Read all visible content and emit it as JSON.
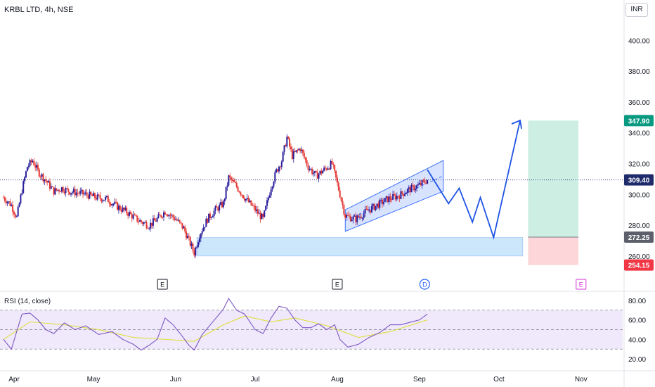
{
  "header": {
    "title": "KRBL LTD, 4h, NSE",
    "currency_button": "INR"
  },
  "rsi_panel": {
    "title": "RSI (14, close)"
  },
  "colors": {
    "bull": "#2a1f9c",
    "bear": "#e53935",
    "channel": "#2962ff",
    "projection": "#1e53e5",
    "support_zone": "#bbdefb",
    "target_zone": "#cceee3",
    "stop_zone": "#fdd6d9",
    "rsi_line": "#7e57c2",
    "rsi_ma": "#e1df4a",
    "rsi_band": "#efe9fb"
  },
  "event_markers": [
    {
      "label": "E",
      "type": "earnings",
      "date": "May 27"
    },
    {
      "label": "E",
      "type": "earnings",
      "date": "Aug 1"
    },
    {
      "label": "D",
      "type": "dividend",
      "date": "Sep 3"
    },
    {
      "label": "E",
      "type": "earnings",
      "date": "Nov 1"
    }
  ],
  "price_tags": [
    {
      "label": "347.90",
      "value": 347.9,
      "color": "#089981"
    },
    {
      "label": "309.40",
      "value": 309.4,
      "color": "#1f2a6b"
    },
    {
      "label": "272.25",
      "value": 272.25,
      "color": "#5d606b"
    },
    {
      "label": "254.15",
      "value": 254.15,
      "color": "#f23645"
    }
  ],
  "chart_data": [
    {
      "type": "candlestick",
      "title": "KRBL LTD, 4h, NSE",
      "xlabel": "",
      "ylabel": "INR",
      "x_ticks": [
        "Apr",
        "May",
        "Jun",
        "Jul",
        "Aug",
        "Sep",
        "Oct",
        "Nov"
      ],
      "y_ticks": [
        260,
        280,
        300,
        320,
        340,
        360,
        380,
        400
      ],
      "ylim": [
        254,
        408
      ],
      "last_price": 309.4,
      "closes": [
        {
          "date": "Mar 28",
          "value": 298
        },
        {
          "date": "Mar 31",
          "value": 293
        },
        {
          "date": "Apr 2",
          "value": 285
        },
        {
          "date": "Apr 4",
          "value": 303
        },
        {
          "date": "Apr 6",
          "value": 318
        },
        {
          "date": "Apr 8",
          "value": 322
        },
        {
          "date": "Apr 10",
          "value": 315
        },
        {
          "date": "Apr 13",
          "value": 309
        },
        {
          "date": "Apr 16",
          "value": 302
        },
        {
          "date": "Apr 19",
          "value": 304
        },
        {
          "date": "Apr 22",
          "value": 302
        },
        {
          "date": "Apr 25",
          "value": 301
        },
        {
          "date": "Apr 28",
          "value": 300
        },
        {
          "date": "May 2",
          "value": 298
        },
        {
          "date": "May 6",
          "value": 297
        },
        {
          "date": "May 10",
          "value": 292
        },
        {
          "date": "May 14",
          "value": 288
        },
        {
          "date": "May 18",
          "value": 283
        },
        {
          "date": "May 22",
          "value": 280
        },
        {
          "date": "May 25",
          "value": 284
        },
        {
          "date": "May 28",
          "value": 289
        },
        {
          "date": "Jun 1",
          "value": 284
        },
        {
          "date": "Jun 4",
          "value": 278
        },
        {
          "date": "Jun 6",
          "value": 270
        },
        {
          "date": "Jun 8",
          "value": 262
        },
        {
          "date": "Jun 10",
          "value": 274
        },
        {
          "date": "Jun 13",
          "value": 284
        },
        {
          "date": "Jun 16",
          "value": 290
        },
        {
          "date": "Jun 19",
          "value": 294
        },
        {
          "date": "Jun 21",
          "value": 311
        },
        {
          "date": "Jun 24",
          "value": 305
        },
        {
          "date": "Jun 27",
          "value": 298
        },
        {
          "date": "Jul 1",
          "value": 290
        },
        {
          "date": "Jul 4",
          "value": 284
        },
        {
          "date": "Jul 7",
          "value": 305
        },
        {
          "date": "Jul 9",
          "value": 315
        },
        {
          "date": "Jul 11",
          "value": 322
        },
        {
          "date": "Jul 13",
          "value": 337
        },
        {
          "date": "Jul 15",
          "value": 325
        },
        {
          "date": "Jul 18",
          "value": 330
        },
        {
          "date": "Jul 21",
          "value": 318
        },
        {
          "date": "Jul 24",
          "value": 312
        },
        {
          "date": "Jul 27",
          "value": 316
        },
        {
          "date": "Jul 30",
          "value": 320
        },
        {
          "date": "Aug 2",
          "value": 300
        },
        {
          "date": "Aug 4",
          "value": 286
        },
        {
          "date": "Aug 8",
          "value": 284
        },
        {
          "date": "Aug 12",
          "value": 289
        },
        {
          "date": "Aug 16",
          "value": 293
        },
        {
          "date": "Aug 20",
          "value": 297
        },
        {
          "date": "Aug 24",
          "value": 299
        },
        {
          "date": "Aug 28",
          "value": 303
        },
        {
          "date": "Sep 1",
          "value": 306
        },
        {
          "date": "Sep 4",
          "value": 309.4
        }
      ],
      "annotations": {
        "support_zone": {
          "from": "Jun 9",
          "to": "Oct 10",
          "low": 260,
          "high": 272
        },
        "ascending_channel": {
          "start": "Aug 4",
          "end": "Sep 10",
          "lower_line": [
            276,
            302
          ],
          "upper_line": [
            290,
            322
          ]
        },
        "projection_path": [
          {
            "date": "Sep 4",
            "value": 316
          },
          {
            "date": "Sep 12",
            "value": 294
          },
          {
            "date": "Sep 16",
            "value": 304
          },
          {
            "date": "Sep 21",
            "value": 282
          },
          {
            "date": "Sep 24",
            "value": 298
          },
          {
            "date": "Sep 29",
            "value": 272
          },
          {
            "date": "Oct 9",
            "value": 348
          }
        ],
        "long_position": {
          "from": "Oct 12",
          "to": "Oct 31",
          "entry": 272.25,
          "target": 347.9,
          "stop": 254.15
        }
      }
    },
    {
      "type": "line",
      "title": "RSI (14, close)",
      "y_ticks": [
        20,
        40,
        60,
        80
      ],
      "ylim": [
        10,
        90
      ],
      "bands": {
        "upper": 70,
        "middle": 50,
        "lower": 30
      },
      "series": [
        {
          "values": [
            {
              "date": "Mar 28",
              "value": 40
            },
            {
              "date": "Mar 31",
              "value": 30
            },
            {
              "date": "Apr 2",
              "value": 48
            },
            {
              "date": "Apr 4",
              "value": 66
            },
            {
              "date": "Apr 7",
              "value": 67
            },
            {
              "date": "Apr 10",
              "value": 60
            },
            {
              "date": "Apr 13",
              "value": 50
            },
            {
              "date": "Apr 16",
              "value": 46
            },
            {
              "date": "Apr 20",
              "value": 57
            },
            {
              "date": "Apr 24",
              "value": 50
            },
            {
              "date": "Apr 28",
              "value": 54
            },
            {
              "date": "May 3",
              "value": 45
            },
            {
              "date": "May 8",
              "value": 48
            },
            {
              "date": "May 12",
              "value": 40
            },
            {
              "date": "May 16",
              "value": 35
            },
            {
              "date": "May 19",
              "value": 29
            },
            {
              "date": "May 22",
              "value": 34
            },
            {
              "date": "May 25",
              "value": 40
            },
            {
              "date": "May 28",
              "value": 62
            },
            {
              "date": "May 31",
              "value": 55
            },
            {
              "date": "Jun 3",
              "value": 45
            },
            {
              "date": "Jun 6",
              "value": 34
            },
            {
              "date": "Jun 8",
              "value": 29
            },
            {
              "date": "Jun 11",
              "value": 45
            },
            {
              "date": "Jun 15",
              "value": 58
            },
            {
              "date": "Jun 19",
              "value": 71
            },
            {
              "date": "Jun 21",
              "value": 82
            },
            {
              "date": "Jun 24",
              "value": 70
            },
            {
              "date": "Jun 27",
              "value": 66
            },
            {
              "date": "Jul 1",
              "value": 50
            },
            {
              "date": "Jul 4",
              "value": 46
            },
            {
              "date": "Jul 7",
              "value": 62
            },
            {
              "date": "Jul 10",
              "value": 74
            },
            {
              "date": "Jul 13",
              "value": 72
            },
            {
              "date": "Jul 16",
              "value": 60
            },
            {
              "date": "Jul 19",
              "value": 52
            },
            {
              "date": "Jul 22",
              "value": 52
            },
            {
              "date": "Jul 25",
              "value": 56
            },
            {
              "date": "Jul 28",
              "value": 50
            },
            {
              "date": "Jul 31",
              "value": 55
            },
            {
              "date": "Aug 2",
              "value": 40
            },
            {
              "date": "Aug 5",
              "value": 32
            },
            {
              "date": "Aug 9",
              "value": 35
            },
            {
              "date": "Aug 13",
              "value": 42
            },
            {
              "date": "Aug 17",
              "value": 47
            },
            {
              "date": "Aug 21",
              "value": 55
            },
            {
              "date": "Aug 25",
              "value": 55
            },
            {
              "date": "Aug 29",
              "value": 58
            },
            {
              "date": "Sep 1",
              "value": 60
            },
            {
              "date": "Sep 4",
              "value": 66
            }
          ]
        },
        {
          "values": [
            {
              "date": "Mar 28",
              "value": 40
            },
            {
              "date": "Apr 7",
              "value": 58
            },
            {
              "date": "Apr 20",
              "value": 55
            },
            {
              "date": "May 3",
              "value": 50
            },
            {
              "date": "May 16",
              "value": 42
            },
            {
              "date": "May 28",
              "value": 40
            },
            {
              "date": "Jun 8",
              "value": 38
            },
            {
              "date": "Jun 19",
              "value": 55
            },
            {
              "date": "Jun 27",
              "value": 64
            },
            {
              "date": "Jul 7",
              "value": 58
            },
            {
              "date": "Jul 16",
              "value": 62
            },
            {
              "date": "Jul 28",
              "value": 54
            },
            {
              "date": "Aug 9",
              "value": 42
            },
            {
              "date": "Aug 21",
              "value": 48
            },
            {
              "date": "Sep 4",
              "value": 60
            }
          ]
        }
      ]
    }
  ]
}
